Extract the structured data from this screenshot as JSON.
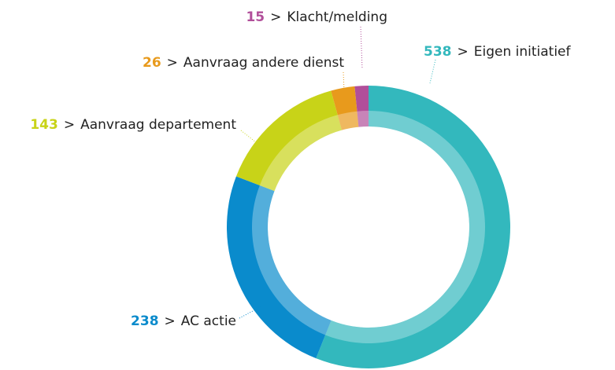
{
  "chart_data": {
    "type": "donut",
    "categories": [
      "Eigen initiatief",
      "AC actie",
      "Aanvraag departement",
      "Aanvraag andere dienst",
      "Klacht/melding"
    ],
    "values": [
      538,
      238,
      143,
      26,
      15
    ],
    "colors": [
      "#33b8bd",
      "#0a8bcc",
      "#c8d318",
      "#e89a1c",
      "#b14f9a"
    ],
    "separator": ">"
  }
}
